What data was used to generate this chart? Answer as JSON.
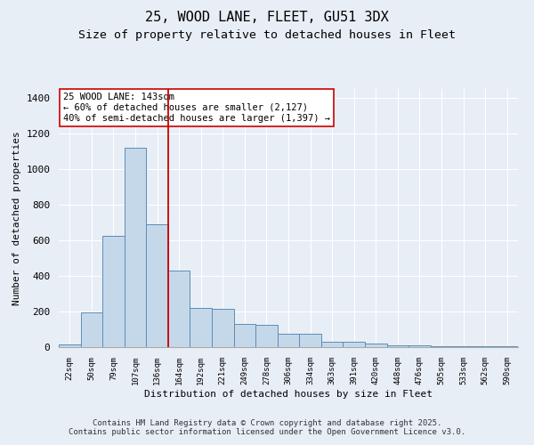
{
  "title1": "25, WOOD LANE, FLEET, GU51 3DX",
  "title2": "Size of property relative to detached houses in Fleet",
  "xlabel": "Distribution of detached houses by size in Fleet",
  "ylabel": "Number of detached properties",
  "categories": [
    "22sqm",
    "50sqm",
    "79sqm",
    "107sqm",
    "136sqm",
    "164sqm",
    "192sqm",
    "221sqm",
    "249sqm",
    "278sqm",
    "306sqm",
    "334sqm",
    "363sqm",
    "391sqm",
    "420sqm",
    "448sqm",
    "476sqm",
    "505sqm",
    "533sqm",
    "562sqm",
    "590sqm"
  ],
  "values": [
    15,
    195,
    625,
    1120,
    690,
    430,
    220,
    215,
    130,
    125,
    75,
    75,
    30,
    28,
    20,
    12,
    8,
    5,
    5,
    4,
    4
  ],
  "bar_color": "#c5d8ea",
  "bar_edge_color": "#5b8db8",
  "bg_color": "#e8eef5",
  "grid_color": "#ffffff",
  "vline_x": 4.5,
  "vline_color": "#cc0000",
  "annotation_text": "25 WOOD LANE: 143sqm\n← 60% of detached houses are smaller (2,127)\n40% of semi-detached houses are larger (1,397) →",
  "annotation_box_color": "#ffffff",
  "annotation_box_edge": "#cc0000",
  "ylim": [
    0,
    1450
  ],
  "yticks": [
    0,
    200,
    400,
    600,
    800,
    1000,
    1200,
    1400
  ],
  "footnote": "Contains HM Land Registry data © Crown copyright and database right 2025.\nContains public sector information licensed under the Open Government Licence v3.0.",
  "title_fontsize": 11,
  "subtitle_fontsize": 9.5,
  "annot_fontsize": 7.5,
  "footnote_fontsize": 6.5
}
